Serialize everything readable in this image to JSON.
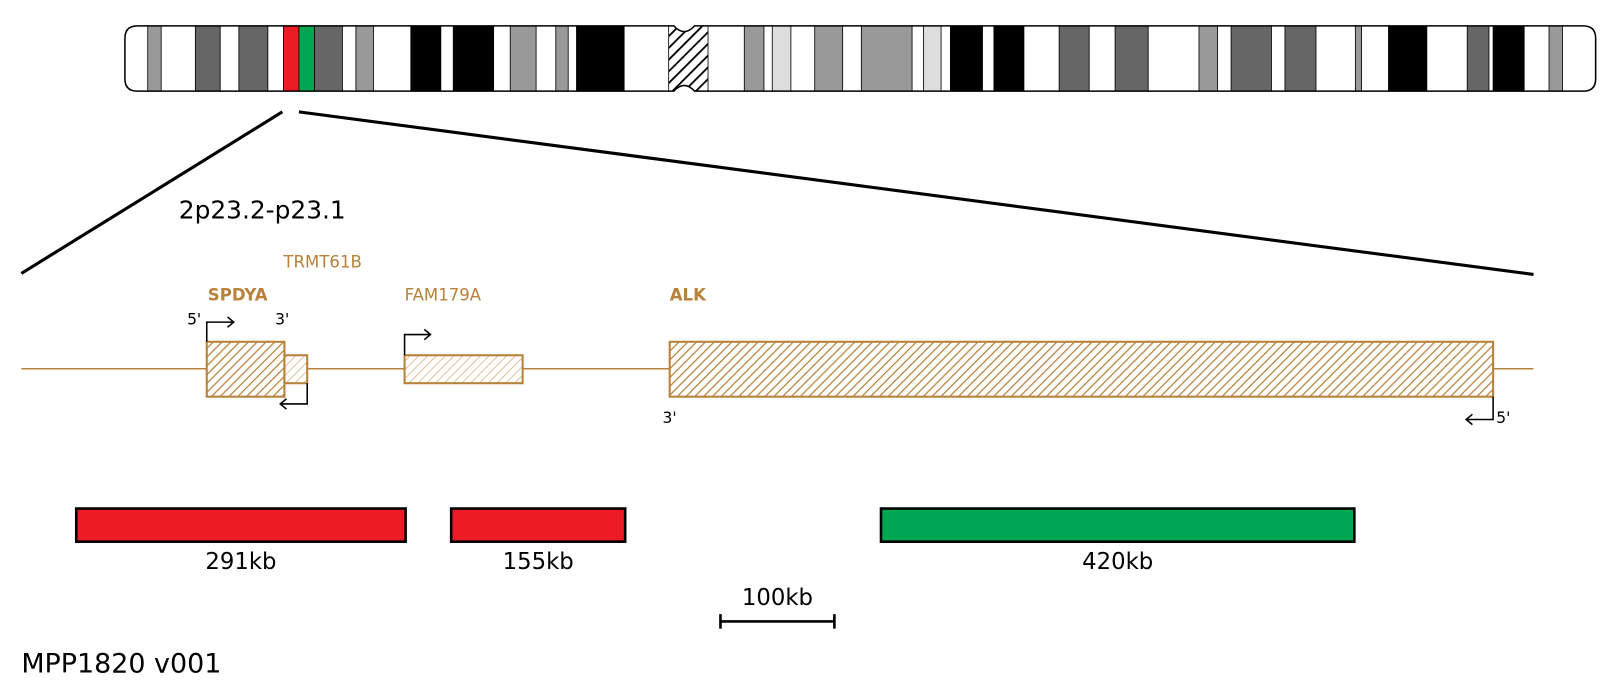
{
  "region": "2p23.2-p23.1",
  "genes": [
    {
      "name": "SPDYA",
      "five": "5'",
      "three": "3'"
    },
    {
      "name": "TRMT61B"
    },
    {
      "name": "FAM179A"
    },
    {
      "name": "ALK",
      "five": "5'",
      "three": "3'"
    }
  ],
  "probes": [
    {
      "label": "291kb",
      "color": "#ed1c24"
    },
    {
      "label": "155kb",
      "color": "#ed1c24"
    },
    {
      "label": "420kb",
      "color": "#00a651"
    }
  ],
  "scale_bar": "100kb",
  "product": "MPP1820 v001"
}
